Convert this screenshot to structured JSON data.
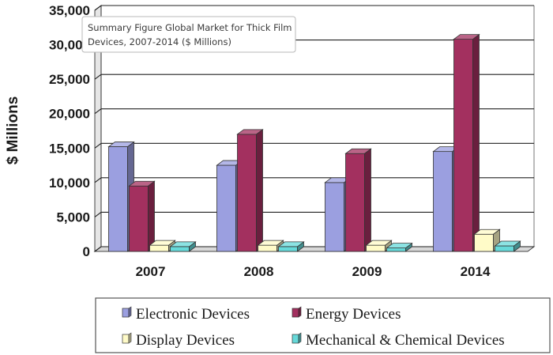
{
  "chart_data": {
    "type": "bar",
    "title_lines": [
      "Summary Figure Global Market for Thick Film",
      "Devices, 2007-2014 ($ Millions)"
    ],
    "xlabel": "",
    "ylabel": "$ Millions",
    "categories": [
      "2007",
      "2008",
      "2009",
      "2014"
    ],
    "ylim": [
      0,
      35000
    ],
    "yticks": [
      "0",
      "5,000",
      "10,000",
      "15,000",
      "20,000",
      "25,000",
      "30,000",
      "35,000"
    ],
    "grid": true,
    "legend_position": "bottom",
    "series": [
      {
        "name": "Electronic Devices",
        "color": "#9b9fe0",
        "values": [
          15200,
          12500,
          10000,
          14500
        ]
      },
      {
        "name": "Energy Devices",
        "color": "#a3305f",
        "values": [
          9500,
          17000,
          14200,
          30800
        ]
      },
      {
        "name": "Display Devices",
        "color": "#fffbc8",
        "values": [
          900,
          900,
          900,
          2500
        ]
      },
      {
        "name": "Mechanical & Chemical Devices",
        "color": "#66d9d9",
        "values": [
          700,
          700,
          500,
          800
        ]
      }
    ]
  }
}
